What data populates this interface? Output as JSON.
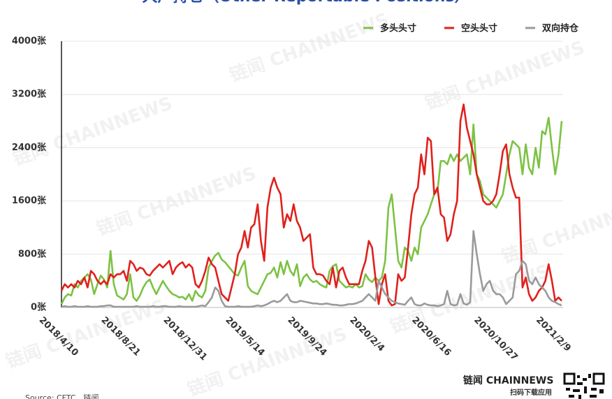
{
  "chart_data": {
    "type": "line",
    "title": "大户持仓（Other Reportable Positions）",
    "watermark": "链闻 CHAINNEWS",
    "source": "Source: CFTC、链闻",
    "brand": "链闻 CHAINNEWS",
    "brand_sub": "扫码下载应用",
    "legend": "top-right",
    "grid": true,
    "categories": [
      "2018/4/10",
      null,
      null,
      null,
      null,
      null,
      null,
      null,
      null,
      null,
      null,
      null,
      null,
      null,
      null,
      null,
      null,
      null,
      null,
      "2018/8/21",
      null,
      null,
      null,
      null,
      null,
      null,
      null,
      null,
      null,
      null,
      null,
      null,
      null,
      null,
      null,
      null,
      null,
      null,
      "2018/12/31",
      null,
      null,
      null,
      null,
      null,
      null,
      null,
      null,
      null,
      null,
      null,
      null,
      null,
      null,
      null,
      null,
      null,
      null,
      "2019/5/14",
      null,
      null,
      null,
      null,
      null,
      null,
      null,
      null,
      null,
      null,
      null,
      null,
      null,
      null,
      null,
      null,
      null,
      null,
      "2019/9/24",
      null,
      null,
      null,
      null,
      null,
      null,
      null,
      null,
      null,
      null,
      null,
      null,
      null,
      null,
      null,
      null,
      null,
      null,
      "2020/2/4",
      null,
      null,
      null,
      null,
      null,
      null,
      null,
      null,
      null,
      null,
      null,
      null,
      null,
      null,
      null,
      null,
      null,
      null,
      "2020/6/16",
      null,
      null,
      null,
      null,
      null,
      null,
      null,
      null,
      null,
      null,
      null,
      null,
      null,
      null,
      null,
      null,
      null,
      null,
      "2020/10/27",
      null,
      null,
      null,
      null,
      null,
      null,
      null,
      null,
      null,
      null,
      null,
      null,
      null,
      null,
      null,
      null,
      null,
      null,
      "2021/2/9",
      null
    ],
    "ylim": [
      0,
      4000
    ],
    "yticks": [
      {
        "value": 0,
        "label": "0张"
      },
      {
        "value": 800,
        "label": "800张"
      },
      {
        "value": 1600,
        "label": "1600张"
      },
      {
        "value": 2400,
        "label": "2400张"
      },
      {
        "value": 3200,
        "label": "3200张"
      },
      {
        "value": 4000,
        "label": "4000张"
      }
    ],
    "series": [
      {
        "name": "多头头寸",
        "color": "#7cc243",
        "values": [
          50,
          150,
          200,
          180,
          350,
          300,
          400,
          450,
          500,
          420,
          200,
          350,
          480,
          420,
          300,
          850,
          350,
          180,
          150,
          120,
          200,
          500,
          150,
          100,
          180,
          300,
          380,
          420,
          300,
          200,
          300,
          400,
          320,
          250,
          200,
          180,
          150,
          160,
          120,
          200,
          100,
          250,
          180,
          150,
          250,
          600,
          700,
          780,
          820,
          720,
          680,
          620,
          560,
          500,
          480,
          600,
          700,
          320,
          250,
          220,
          200,
          300,
          400,
          500,
          520,
          600,
          450,
          680,
          500,
          700,
          550,
          480,
          650,
          320,
          450,
          500,
          420,
          380,
          400,
          350,
          320,
          300,
          550,
          620,
          650,
          400,
          350,
          300,
          320,
          300,
          350,
          300,
          320,
          500,
          420,
          380,
          450,
          400,
          450,
          700,
          1500,
          1700,
          1200,
          700,
          600,
          900,
          850,
          700,
          900,
          800,
          1200,
          1300,
          1400,
          1550,
          1700,
          1750,
          2200,
          2200,
          2150,
          2300,
          2200,
          2300,
          2200,
          2250,
          2300,
          2000,
          2750,
          2000,
          1900,
          1700,
          1650,
          1600,
          1550,
          1500,
          1600,
          1700,
          2000,
          2300,
          2500,
          2450,
          2400,
          2000,
          2450,
          2100,
          2000,
          2400,
          2100,
          2650,
          2600,
          2850,
          2400,
          2000,
          2300,
          2800
        ]
      },
      {
        "name": "空头头寸",
        "color": "#e0201c",
        "values": [
          250,
          350,
          300,
          350,
          300,
          400,
          350,
          450,
          300,
          550,
          500,
          400,
          350,
          400,
          350,
          500,
          450,
          500,
          500,
          550,
          400,
          700,
          650,
          550,
          600,
          580,
          500,
          480,
          550,
          600,
          650,
          600,
          650,
          700,
          500,
          600,
          650,
          680,
          600,
          650,
          600,
          350,
          300,
          400,
          550,
          750,
          650,
          600,
          400,
          200,
          150,
          100,
          300,
          500,
          800,
          900,
          1150,
          900,
          1200,
          1250,
          1550,
          1000,
          700,
          1500,
          1800,
          1950,
          1800,
          1700,
          1200,
          1400,
          1300,
          1550,
          1300,
          1200,
          1000,
          1050,
          1100,
          600,
          500,
          500,
          480,
          400,
          350,
          600,
          300,
          550,
          600,
          450,
          350,
          350,
          350,
          350,
          550,
          700,
          1000,
          900,
          450,
          50,
          350,
          500,
          100,
          30,
          50,
          500,
          400,
          450,
          900,
          1400,
          1700,
          1800,
          2300,
          2000,
          2550,
          2500,
          1700,
          1800,
          1400,
          1350,
          1000,
          1100,
          1400,
          1600,
          2800,
          3050,
          2700,
          2500,
          2300,
          2000,
          1800,
          1600,
          1550,
          1550,
          1600,
          1700,
          2000,
          2350,
          2450,
          2000,
          1800,
          1650,
          1650,
          300,
          450,
          200,
          100,
          150,
          250,
          300,
          400,
          650,
          400,
          100,
          150,
          100
        ]
      },
      {
        "name": "双向持仓",
        "color": "#9a9a9a",
        "values": [
          10,
          20,
          10,
          10,
          20,
          10,
          10,
          10,
          20,
          10,
          10,
          10,
          20,
          20,
          30,
          30,
          10,
          10,
          10,
          10,
          10,
          10,
          10,
          20,
          10,
          10,
          10,
          10,
          20,
          10,
          10,
          20,
          20,
          10,
          10,
          10,
          20,
          10,
          10,
          10,
          10,
          10,
          20,
          30,
          20,
          80,
          150,
          300,
          250,
          100,
          20,
          10,
          10,
          10,
          20,
          10,
          10,
          10,
          10,
          20,
          30,
          20,
          30,
          50,
          80,
          100,
          80,
          100,
          150,
          200,
          100,
          80,
          80,
          100,
          90,
          80,
          70,
          60,
          60,
          50,
          50,
          60,
          50,
          40,
          40,
          30,
          30,
          40,
          50,
          50,
          60,
          80,
          100,
          150,
          200,
          150,
          100,
          400,
          300,
          200,
          150,
          100,
          80,
          60,
          50,
          40,
          100,
          150,
          50,
          30,
          30,
          60,
          40,
          30,
          30,
          20,
          30,
          50,
          250,
          50,
          30,
          40,
          200,
          60,
          40,
          80,
          1150,
          800,
          500,
          250,
          350,
          400,
          250,
          200,
          200,
          150,
          50,
          100,
          150,
          500,
          550,
          700,
          650,
          400,
          350,
          450,
          350,
          300,
          250,
          150,
          100,
          80,
          50,
          30
        ]
      }
    ]
  }
}
